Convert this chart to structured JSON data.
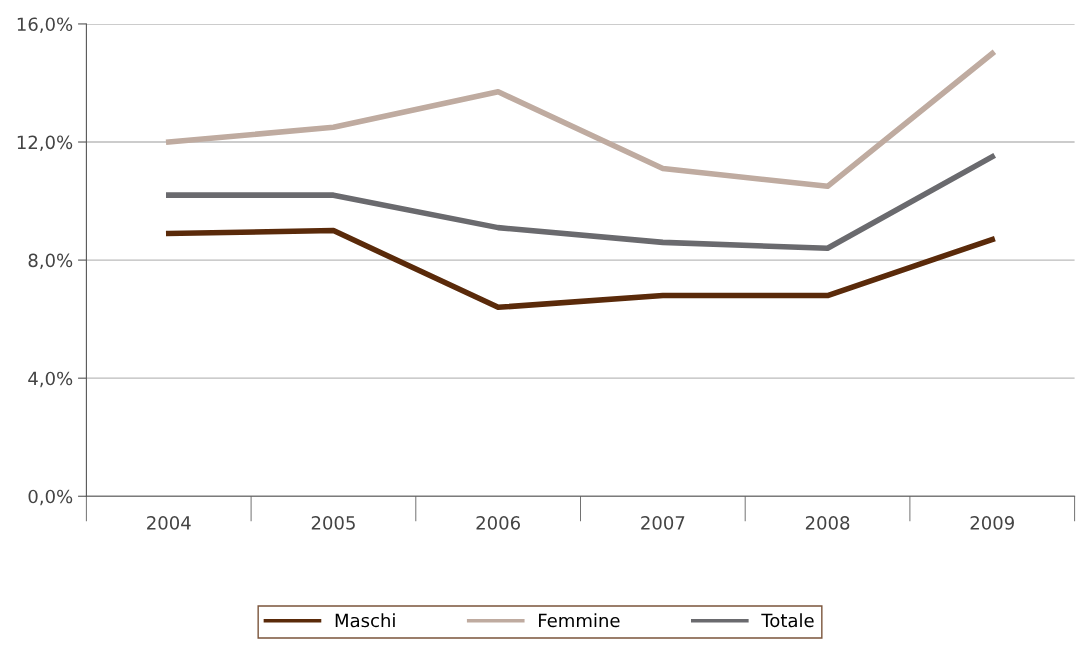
{
  "chart_data": {
    "type": "line",
    "categories": [
      "2004",
      "2005",
      "2006",
      "2007",
      "2008",
      "2009"
    ],
    "series": [
      {
        "name": "Maschi",
        "color": "#5a2a0a",
        "values": [
          8.9,
          9.0,
          6.4,
          6.8,
          6.8,
          8.7
        ]
      },
      {
        "name": "Femmine",
        "color": "#bfaba0",
        "values": [
          12.0,
          12.5,
          13.7,
          11.1,
          10.5,
          15.0
        ]
      },
      {
        "name": "Totale",
        "color": "#6a6a6e",
        "values": [
          10.2,
          10.2,
          9.1,
          8.6,
          8.4,
          11.5
        ]
      }
    ],
    "ylim": [
      0,
      16
    ],
    "yticks": [
      {
        "value": 0,
        "label": "0,0%"
      },
      {
        "value": 4,
        "label": "4,0%"
      },
      {
        "value": 8,
        "label": "8,0%"
      },
      {
        "value": 12,
        "label": "12,0%"
      },
      {
        "value": 16,
        "label": "16,0%"
      }
    ],
    "grid": "y",
    "legend": "bottom",
    "marker": "none",
    "line_style": "solid"
  }
}
